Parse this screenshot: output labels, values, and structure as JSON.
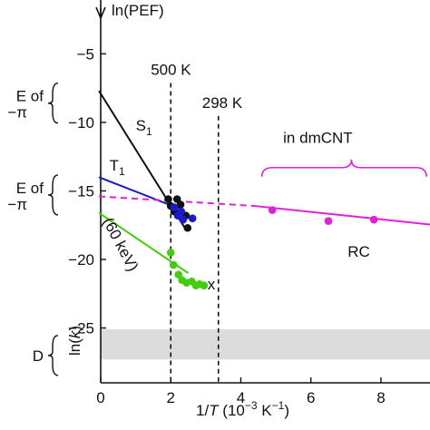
{
  "chart_data": {
    "type": "scatter",
    "ylabel": "ln(PEF)",
    "ylabel_left": "ln(k)",
    "xlabel_prefix": "1/",
    "xlabel_var": "T",
    "xlabel_units": " (10",
    "xlabel_exp": "−3",
    "xlabel_units2": " K",
    "xlabel_exp2": "−1",
    "xlabel_close": ")",
    "xlim": [
      0,
      9.4
    ],
    "ylim": [
      -29,
      -2
    ],
    "x_ticks": [
      0,
      2,
      4,
      6,
      8
    ],
    "x_tick_labels": [
      "0",
      "2",
      "4",
      "6",
      "8"
    ],
    "y_ticks": [
      -5,
      -10,
      -15,
      -20,
      -25
    ],
    "y_tick_labels": [
      "−5",
      "−10",
      "−15",
      "−20",
      "−25"
    ],
    "shaded_band": {
      "y_from": -27.3,
      "y_to": -25.1,
      "color": "#dcdcdc"
    },
    "reference_lines": [
      {
        "x": 2.0,
        "label": "500 K",
        "label_y": -6.6
      },
      {
        "x": 3.36,
        "label": "298 K",
        "label_y": -9.0
      }
    ],
    "left_labels": [
      {
        "line1": "E of",
        "line2": "−π",
        "y_center": -8.6
      },
      {
        "line1": "E of",
        "line2": "−π",
        "y_center": -15.3
      },
      {
        "line1": "D",
        "line2": "",
        "y_center": -27.0
      }
    ],
    "series": [
      {
        "name": "S",
        "sub": "1",
        "color": "#111111",
        "label_pos": [
          1.0,
          -10.6
        ],
        "fit": [
          [
            -0.05,
            -7.7
          ],
          [
            2.45,
            -17.9
          ]
        ],
        "points": [
          [
            1.93,
            -15.6
          ],
          [
            2.0,
            -16.1
          ],
          [
            2.1,
            -16.5
          ],
          [
            2.18,
            -15.6
          ],
          [
            2.28,
            -16.0
          ],
          [
            2.43,
            -16.8
          ],
          [
            2.48,
            -17.7
          ]
        ]
      },
      {
        "name": "T",
        "sub": "1",
        "color": "#1a1acc",
        "label_pos": [
          0.25,
          -13.5
        ],
        "fit": [
          [
            -0.05,
            -14.0
          ],
          [
            2.35,
            -16.4
          ]
        ],
        "points": [
          [
            2.1,
            -16.2
          ],
          [
            2.2,
            -16.8
          ],
          [
            2.3,
            -16.5
          ],
          [
            2.35,
            -17.1
          ],
          [
            2.62,
            -17.0
          ]
        ]
      },
      {
        "name": "(60 keV)",
        "sub": "",
        "color": "#44cc11",
        "label_pos": [
          0.05,
          -17.2
        ],
        "label_rotate": 62,
        "end_label": "x",
        "end_label_pos": [
          3.05,
          -22.2
        ],
        "fit": [
          [
            -0.05,
            -16.6
          ],
          [
            2.5,
            -21.0
          ]
        ],
        "points": [
          [
            2.0,
            -19.5
          ],
          [
            2.08,
            -20.4
          ],
          [
            2.22,
            -21.1
          ],
          [
            2.32,
            -21.5
          ],
          [
            2.45,
            -21.7
          ],
          [
            2.6,
            -21.6
          ],
          [
            2.72,
            -21.9
          ],
          [
            2.82,
            -21.8
          ],
          [
            2.95,
            -21.9
          ]
        ]
      },
      {
        "name": "RC",
        "sub": "",
        "color": "#e020d8",
        "label_pos": [
          7.05,
          -19.8
        ],
        "fit_dashed": [
          [
            -0.05,
            -15.4
          ],
          [
            4.4,
            -16.1
          ]
        ],
        "fit": [
          [
            4.4,
            -16.1
          ],
          [
            9.4,
            -17.45
          ]
        ],
        "points": [
          [
            4.9,
            -16.4
          ],
          [
            6.5,
            -17.2
          ],
          [
            7.8,
            -17.1
          ]
        ]
      }
    ],
    "annotations": [
      {
        "text": "in dmCNT",
        "color": "#e020d8",
        "x": 6.2,
        "y": -11.5
      },
      {
        "text": "",
        "brace": true,
        "color": "#e020d8",
        "x_from": 4.6,
        "x_to": 9.3,
        "y": -13.3
      }
    ]
  }
}
